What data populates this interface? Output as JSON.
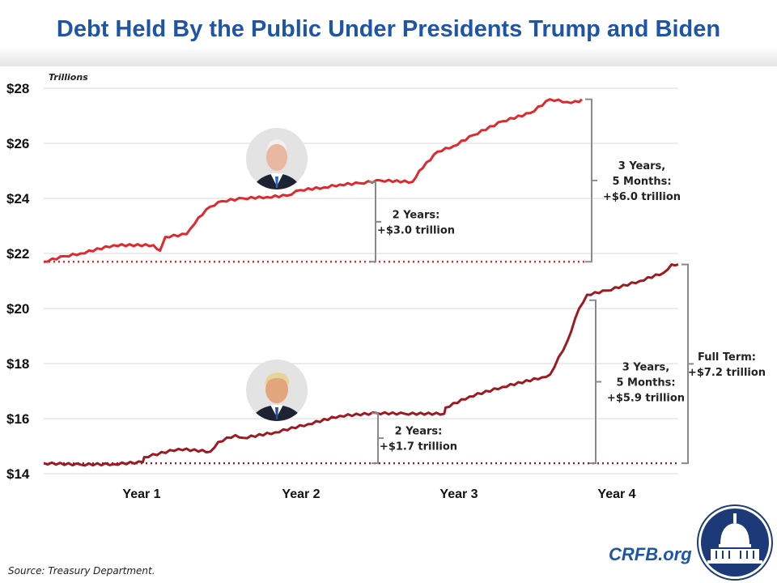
{
  "chart_data": {
    "type": "line",
    "title": "Debt Held By the Public Under Presidents Trump and Biden",
    "ylabel": "Trillions",
    "ylim": [
      14,
      28
    ],
    "yticks": [
      "$14",
      "$16",
      "$18",
      "$20",
      "$22",
      "$24",
      "$26",
      "$28"
    ],
    "ytick_values": [
      14,
      16,
      18,
      20,
      22,
      24,
      26,
      28
    ],
    "xlabel": "",
    "xlim": [
      0,
      48
    ],
    "categories": [
      "Year 1",
      "Year 2",
      "Year 3",
      "Year 4"
    ],
    "grid": true,
    "series": [
      {
        "color": "#dd2a2e",
        "x": [
          0,
          1.6,
          2.8,
          5.3,
          8.3,
          8.8,
          9.2,
          10.8,
          11.1,
          11.7,
          12.6,
          13.5,
          15.1,
          16.9,
          18.4,
          19.4,
          21.2,
          22.4,
          23.9,
          25.5,
          27.9,
          28.4,
          29.8,
          31,
          32.5,
          34.7,
          36.8,
          38.3,
          39.6,
          40.5,
          40.7
        ],
        "y": [
          21.7,
          21.9,
          22.0,
          22.3,
          22.3,
          22.1,
          22.6,
          22.7,
          22.9,
          23.3,
          23.7,
          23.9,
          24.0,
          24.05,
          24.1,
          24.3,
          24.4,
          24.5,
          24.55,
          24.65,
          24.6,
          25.0,
          25.7,
          25.9,
          26.3,
          26.8,
          27.1,
          27.6,
          27.5,
          27.5,
          27.6
        ]
      },
      {
        "color": "#9b1b22",
        "x": [
          0,
          2.8,
          5.3,
          7.5,
          7.6,
          10.2,
          12.6,
          13.2,
          14.5,
          15.1,
          17.5,
          20,
          22.4,
          25.2,
          27.3,
          30.3,
          30.4,
          32.2,
          34.7,
          37.7,
          38.3,
          39.6,
          40.5,
          41.1,
          42.6,
          45.1,
          46.9,
          47.5,
          48
        ],
        "y": [
          14.38,
          14.33,
          14.35,
          14.42,
          14.6,
          14.9,
          14.8,
          15.15,
          15.4,
          15.3,
          15.5,
          15.8,
          16.1,
          16.2,
          16.18,
          16.18,
          16.4,
          16.8,
          17.15,
          17.5,
          17.6,
          18.8,
          20.0,
          20.5,
          20.65,
          21.0,
          21.3,
          21.6,
          21.6
        ]
      }
    ],
    "baselines": [
      {
        "value": 21.7,
        "color": "#dd2a2e"
      },
      {
        "value": 14.38,
        "color": "#9b1b22"
      }
    ],
    "annotations": [
      {
        "lines": [
          "2 Years:",
          "+$3.0 trillion"
        ],
        "from": 21.7,
        "to": 24.6
      },
      {
        "lines": [
          "3 Years,",
          "5 Months:",
          "+$6.0 trillion"
        ],
        "from": 21.7,
        "to": 27.6
      },
      {
        "lines": [
          "2 Years:",
          "+$1.7 trillion"
        ],
        "from": 14.38,
        "to": 16.2
      },
      {
        "lines": [
          "3 Years,",
          "5 Months:",
          "+$5.9 trillion"
        ],
        "from": 14.38,
        "to": 20.3
      },
      {
        "lines": [
          "Full Term:",
          "+$7.2 trillion"
        ],
        "from": 14.38,
        "to": 21.6
      }
    ]
  },
  "source": "Source: Treasury Department.",
  "brand": "CRFB.org",
  "colors": {
    "title": "#1f55a5",
    "logo": "#1c3a78"
  }
}
